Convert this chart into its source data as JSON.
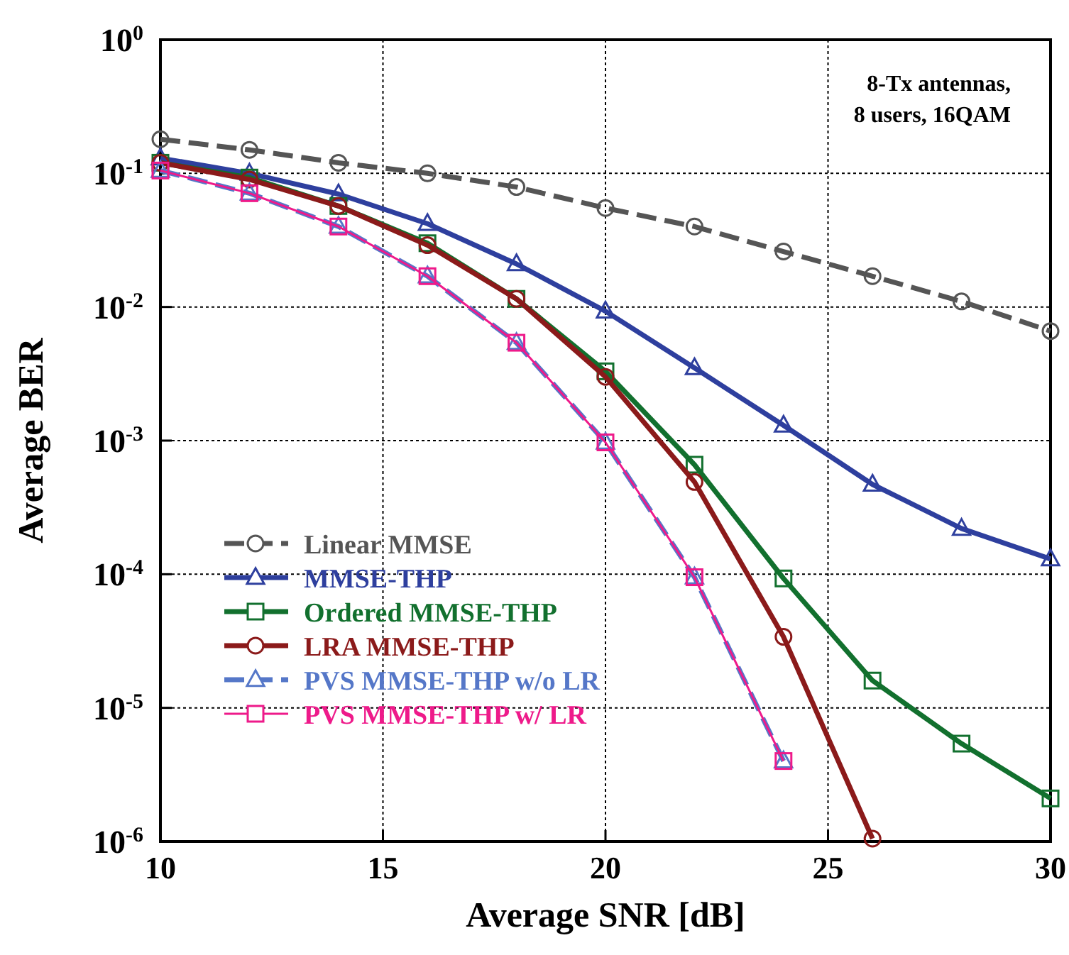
{
  "chart_data": {
    "type": "line",
    "xlabel": "Average SNR [dB]",
    "ylabel": "Average BER",
    "log": "y",
    "grid": true,
    "legend": "bottom left",
    "annotations": [
      "8-Tx antennas,\n8 users, 16QAM"
    ],
    "xlim": [
      10,
      30
    ],
    "xticks": [
      10,
      15,
      20,
      25,
      30
    ],
    "ylim": [
      1e-06,
      1
    ],
    "yticks": [
      {
        "value": 1,
        "label": "10$^{0}$"
      },
      {
        "value": 0.1,
        "label": "10$^{-1}$"
      },
      {
        "value": 0.01,
        "label": "10$^{-2}$"
      },
      {
        "value": 0.001,
        "label": "10$^{-3}$"
      },
      {
        "value": 0.0001,
        "label": "10$^{-4}$"
      },
      {
        "value": 1e-05,
        "label": "10$^{-5}$"
      },
      {
        "value": 1e-06,
        "label": "10$^{-6}$"
      }
    ],
    "x": [
      10,
      12,
      14,
      16,
      18,
      20,
      22,
      24,
      26,
      28,
      30
    ],
    "series": [
      {
        "name": "Linear MMSE",
        "color": "#555555",
        "marker": "circle",
        "line_style": "dashed",
        "values": [
          0.18,
          0.15,
          0.12,
          0.1,
          0.079,
          0.055,
          0.04,
          0.026,
          0.017,
          0.011,
          0.0066
        ]
      },
      {
        "name": "MMSE-THP",
        "color": "#2e3f9e",
        "marker": "triangle",
        "line_style": "solid",
        "values": [
          0.13,
          0.1,
          0.07,
          0.042,
          0.021,
          0.0093,
          0.0035,
          0.0013,
          0.00047,
          0.00022,
          0.00013
        ]
      },
      {
        "name": "Ordered MMSE-THP",
        "color": "#12702e",
        "marker": "square",
        "line_style": "solid",
        "values": [
          0.12,
          0.093,
          0.057,
          0.03,
          0.0115,
          0.0033,
          0.00066,
          9.3e-05,
          1.6e-05,
          5.4e-06,
          2.1e-06
        ]
      },
      {
        "name": "LRA MMSE-THP",
        "color": "#8b1a1a",
        "marker": "circle",
        "line_style": "solid",
        "values": [
          0.12,
          0.09,
          0.057,
          0.029,
          0.0115,
          0.003,
          0.00049,
          3.4e-05,
          1.05e-06,
          null,
          null
        ]
      },
      {
        "name": "PVS MMSE-THP w/o LR",
        "color": "#5577c8",
        "marker": "triangle",
        "line_style": "dashed",
        "values": [
          0.105,
          0.071,
          0.04,
          0.017,
          0.0054,
          0.00097,
          9.5e-05,
          4e-06,
          null,
          null,
          null
        ]
      },
      {
        "name": "PVS MMSE-THP w/ LR",
        "color": "#ee1a8a",
        "marker": "square",
        "line_style": "solid",
        "values": [
          0.105,
          0.071,
          0.04,
          0.017,
          0.0054,
          0.00097,
          9.5e-05,
          4e-06,
          null,
          null,
          null
        ]
      }
    ]
  }
}
